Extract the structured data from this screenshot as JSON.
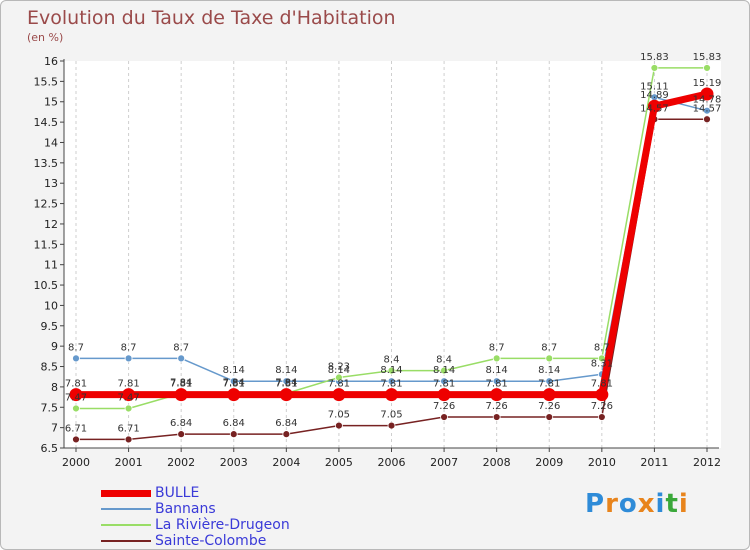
{
  "header": {
    "title": "Evolution du Taux de Taxe d'Habitation",
    "subtitle": "(en %)"
  },
  "logo": {
    "text": "Proxiti",
    "colors": [
      "#2e8bd8",
      "#e8841c",
      "#2e8bd8",
      "#e8841c",
      "#2e8bd8",
      "#3aa83a",
      "#e8841c"
    ]
  },
  "chart_data": {
    "type": "line",
    "title": "Evolution du Taux de Taxe d'Habitation",
    "subtitle": "(en %)",
    "xlabel": "",
    "ylabel": "",
    "x": [
      "2000",
      "2001",
      "2002",
      "2003",
      "2004",
      "2005",
      "2006",
      "2007",
      "2008",
      "2009",
      "2010",
      "2011",
      "2012"
    ],
    "ylim": [
      6.5,
      16
    ],
    "yticks": [
      "6.5",
      "7",
      "7.5",
      "8",
      "8.5",
      "9",
      "9.5",
      "10",
      "10.5",
      "11",
      "11.5",
      "12",
      "12.5",
      "13",
      "13.5",
      "14",
      "14.5",
      "15",
      "15.5",
      "16"
    ],
    "grid": "vertical dashed",
    "legend": "bottom-left",
    "series": [
      {
        "name": "BULLE",
        "color": "#ee0000",
        "values": [
          7.81,
          7.81,
          7.81,
          7.81,
          7.81,
          7.81,
          7.81,
          7.81,
          7.81,
          7.81,
          7.81,
          14.89,
          15.19
        ],
        "labels": [
          "7.81",
          "7.81",
          "7.81",
          "7.81",
          "7.81",
          "7.81",
          "7.81",
          "7.81",
          "7.81",
          "7.81",
          "7.81",
          "14.89",
          "15.19"
        ]
      },
      {
        "name": "Bannans",
        "color": "#6699cc",
        "values": [
          8.7,
          8.7,
          8.7,
          8.14,
          8.14,
          8.14,
          8.14,
          8.14,
          8.14,
          8.14,
          8.31,
          15.11,
          14.78
        ],
        "labels": [
          "8.7",
          "8.7",
          "8.7",
          "8.14",
          "8.14",
          "8.14",
          "8.14",
          "8.14",
          "8.14",
          "8.14",
          "8.31",
          "15.11",
          "14.78"
        ]
      },
      {
        "name": "La Rivière-Drugeon",
        "color": "#99dd66",
        "values": [
          7.47,
          7.47,
          7.84,
          7.84,
          7.84,
          8.23,
          8.4,
          8.4,
          8.7,
          8.7,
          8.7,
          15.83,
          15.83
        ],
        "labels": [
          "7.47",
          "7.47",
          "7.84",
          "7.84",
          "7.84",
          "8.23",
          "8.4",
          "8.4",
          "8.7",
          "8.7",
          "8.7",
          "15.83",
          "15.83"
        ]
      },
      {
        "name": "Sainte-Colombe",
        "color": "#772222",
        "values": [
          6.71,
          6.71,
          6.84,
          6.84,
          6.84,
          7.05,
          7.05,
          7.26,
          7.26,
          7.26,
          7.26,
          14.57,
          14.57
        ],
        "labels": [
          "6.71",
          "6.71",
          "6.84",
          "6.84",
          "6.84",
          "7.05",
          "7.05",
          "7.26",
          "7.26",
          "7.26",
          "7.26",
          "14.57",
          "14.57"
        ]
      }
    ]
  }
}
